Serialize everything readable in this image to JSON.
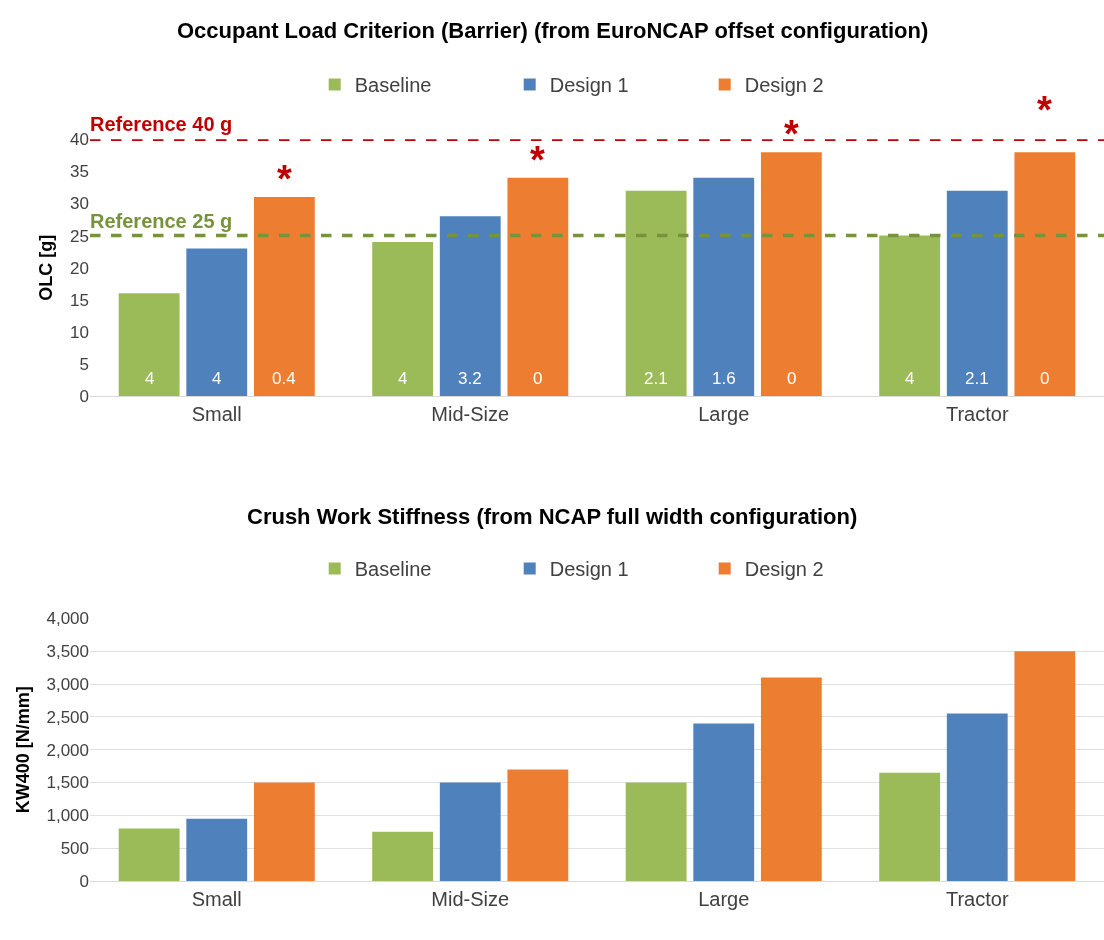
{
  "chart_data": [
    {
      "type": "bar",
      "title": "Occupant Load Criterion (Barrier) (from EuroNCAP offset configuration)",
      "ylabel": "OLC [g]",
      "categories": [
        "Small",
        "Mid-Size",
        "Large",
        "Tractor"
      ],
      "series": [
        {
          "name": "Baseline",
          "color": "#9bbb59",
          "values": [
            16,
            24,
            32,
            25
          ]
        },
        {
          "name": "Design 1",
          "color": "#4f81bd",
          "values": [
            23,
            28,
            34,
            32
          ]
        },
        {
          "name": "Design 2",
          "color": "#ed7d31",
          "values": [
            31,
            34,
            38,
            38
          ]
        }
      ],
      "ylim": [
        0,
        40
      ],
      "yticks": [
        0,
        5,
        10,
        15,
        20,
        25,
        30,
        35,
        40
      ],
      "grid": false,
      "legend": "top",
      "ref_lines": [
        {
          "axis": "y",
          "value": 40,
          "label": "Reference 40 g",
          "color": "#c00000",
          "line_style": "dashed"
        },
        {
          "axis": "y",
          "value": 25,
          "label": "Reference 25 g",
          "color": "#77933c",
          "line_style": "dashed"
        }
      ],
      "annotations": [
        "4",
        "4",
        "0.4",
        "4",
        "3.2",
        "0",
        "2.1",
        "1.6",
        "0",
        "4",
        "2.1",
        "0",
        "*",
        "*",
        "*",
        "*"
      ]
    },
    {
      "type": "bar",
      "title": "Crush Work Stiffness (from NCAP full width configuration)",
      "ylabel": "KW400 [N/mm]",
      "categories": [
        "Small",
        "Mid-Size",
        "Large",
        "Tractor"
      ],
      "series": [
        {
          "name": "Baseline",
          "color": "#9bbb59",
          "values": [
            800,
            750,
            1500,
            1650
          ]
        },
        {
          "name": "Design 1",
          "color": "#4f81bd",
          "values": [
            950,
            1500,
            2400,
            2550
          ]
        },
        {
          "name": "Design 2",
          "color": "#ed7d31",
          "values": [
            1500,
            1700,
            3100,
            3500
          ]
        }
      ],
      "ylim": [
        0,
        4000
      ],
      "yticks": [
        {
          "value": 0,
          "label": "0"
        },
        {
          "value": 500,
          "label": "500"
        },
        {
          "value": 1000,
          "label": "1,000"
        },
        {
          "value": 1500,
          "label": "1,500"
        },
        {
          "value": 2000,
          "label": "2,000"
        },
        {
          "value": 2500,
          "label": "2,500"
        },
        {
          "value": 3000,
          "label": "3,000"
        },
        {
          "value": 3500,
          "label": "3,500"
        },
        {
          "value": 4000,
          "label": "4,000"
        }
      ],
      "grid": "y",
      "legend": "top"
    }
  ]
}
